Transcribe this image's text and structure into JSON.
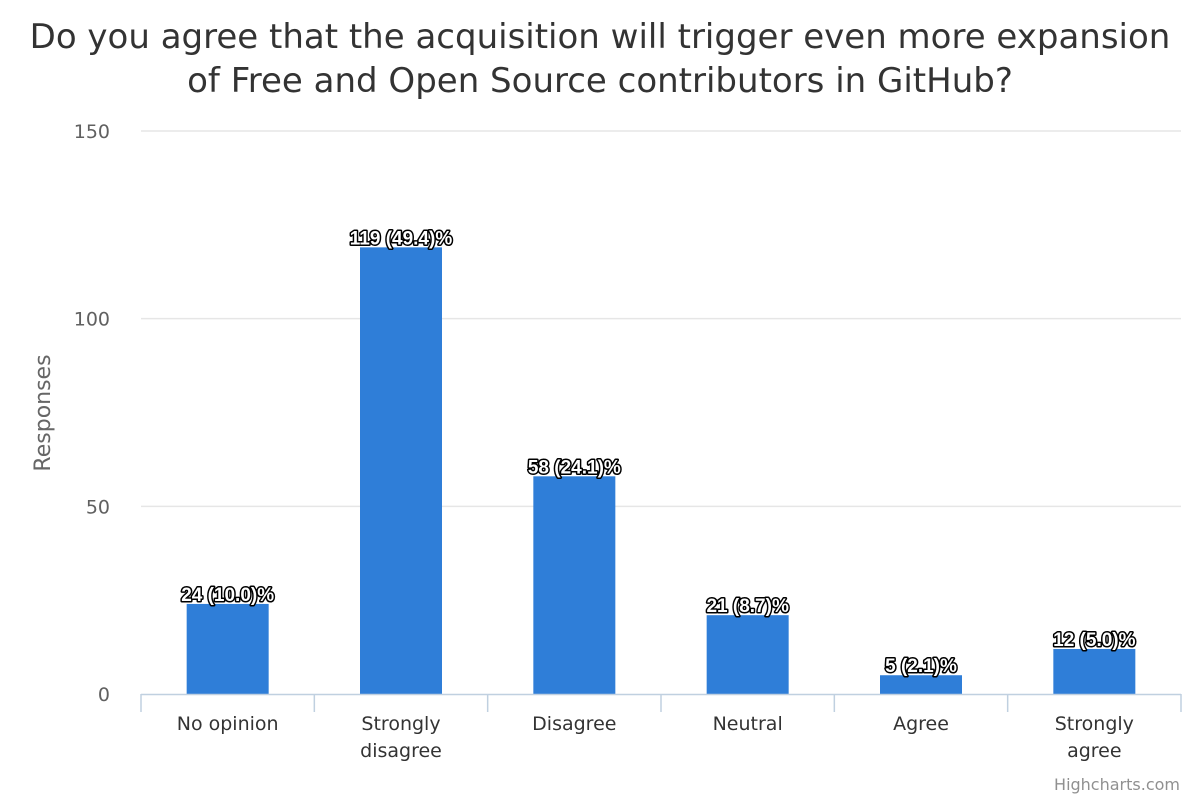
{
  "chart_data": {
    "type": "bar",
    "title_lines": [
      "Do you agree that the acquisition will trigger even more expansion",
      "of Free and Open Source contributors in GitHub?"
    ],
    "categories": [
      [
        "No opinion"
      ],
      [
        "Strongly",
        "disagree"
      ],
      [
        "Disagree"
      ],
      [
        "Neutral"
      ],
      [
        "Agree"
      ],
      [
        "Strongly",
        "agree"
      ]
    ],
    "values": [
      24,
      119,
      58,
      21,
      5,
      12
    ],
    "data_labels": [
      "24 (10.0)%",
      "119 (49.4)%",
      "58 (24.1)%",
      "21 (8.7)%",
      "5 (2.1)%",
      "12 (5.0)%"
    ],
    "ylabel": "Responses",
    "ylim": [
      0,
      150
    ],
    "yticks": [
      "0",
      "50",
      "100",
      "150"
    ],
    "grid": true,
    "legend": "none",
    "bar_color": "#2f7ed8",
    "grid_color": "#e6e6e6",
    "axis_color": "#c0d0e0"
  },
  "credits": "Highcharts.com"
}
